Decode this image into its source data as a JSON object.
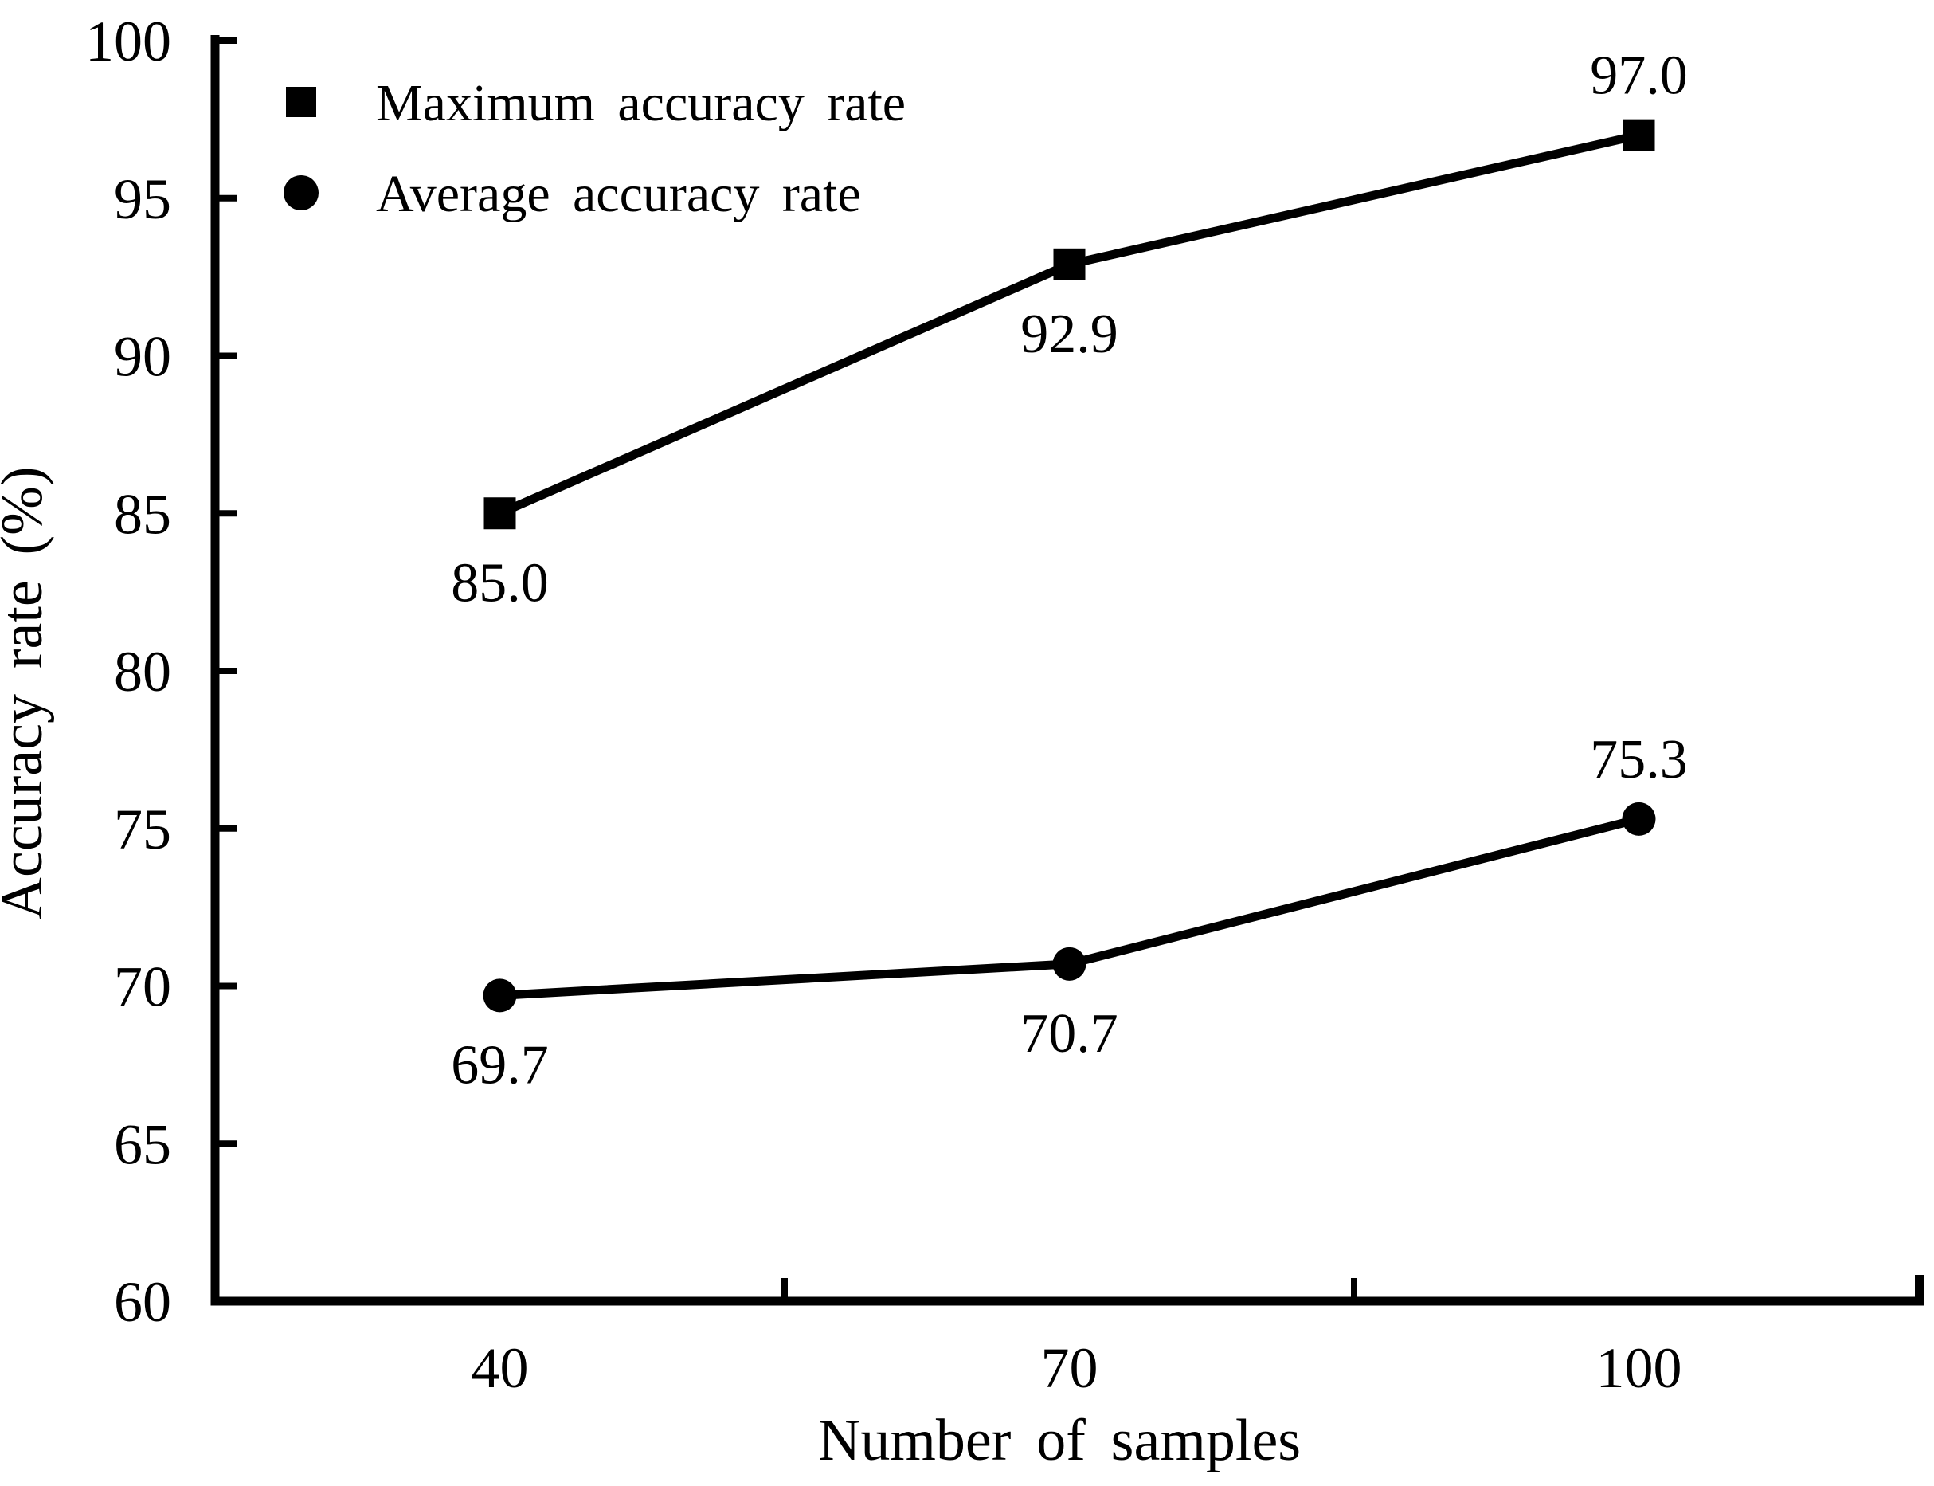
{
  "chart_data": {
    "type": "line",
    "title": "",
    "xlabel": "Number of samples",
    "ylabel": "Accuracy rate (%)",
    "x_categories": [
      "40",
      "70",
      "100"
    ],
    "ylim": [
      60,
      100
    ],
    "yticks": [
      100,
      95,
      90,
      85,
      80,
      75,
      70,
      65,
      60
    ],
    "grid": false,
    "legend_position": "top-left-inside",
    "series": [
      {
        "name": "Maximum accuracy rate",
        "marker": "square",
        "values": [
          85.0,
          92.9,
          97.0
        ],
        "point_labels": [
          "85.0",
          "92.9",
          "97.0"
        ],
        "label_placement": [
          "below",
          "below",
          "above"
        ]
      },
      {
        "name": "Average accuracy rate",
        "marker": "circle",
        "values": [
          69.7,
          70.7,
          75.3
        ],
        "point_labels": [
          "69.7",
          "70.7",
          "75.3"
        ],
        "label_placement": [
          "below",
          "below",
          "above"
        ]
      }
    ],
    "colors": {
      "foreground": "#000000",
      "background": "#ffffff"
    }
  }
}
